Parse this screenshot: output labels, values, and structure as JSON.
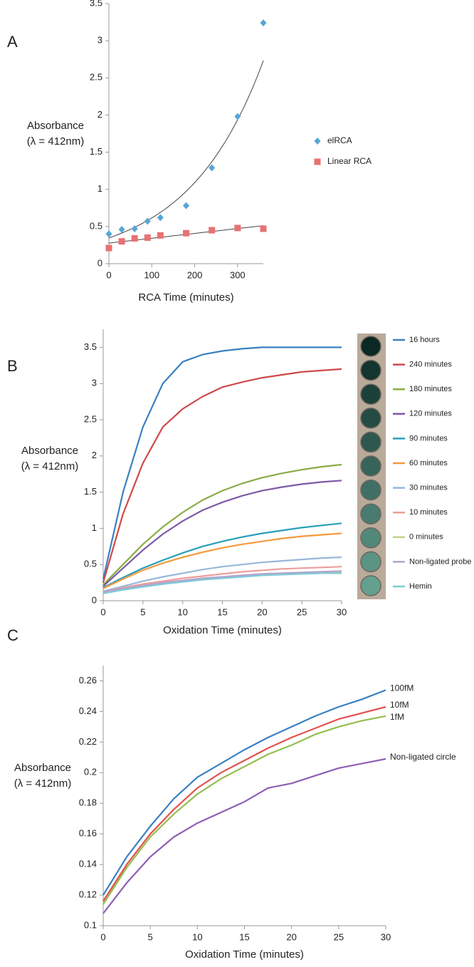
{
  "chart_data": [
    {
      "type": "scatter",
      "panel_label": "A",
      "xlabel": "RCA Time (minutes)",
      "ylabel": [
        "Absorbance",
        "(λ = 412nm)"
      ],
      "x": [
        0,
        30,
        60,
        90,
        120,
        180,
        240,
        300,
        360
      ],
      "xlim": [
        0,
        360
      ],
      "xticks": [
        0,
        100,
        200,
        300
      ],
      "ylim": [
        0,
        3.5
      ],
      "yticks": [
        0,
        0.5,
        1,
        1.5,
        2,
        2.5,
        3,
        3.5
      ],
      "legend": "right",
      "series": [
        {
          "name": "elRCA",
          "color": "#56a6d6",
          "marker": "diamond",
          "trendline": "exponential",
          "values": [
            0.4,
            0.46,
            0.47,
            0.57,
            0.62,
            0.78,
            1.29,
            1.98,
            3.24
          ]
        },
        {
          "name": "Linear RCA",
          "color": "#e87272",
          "marker": "square",
          "trendline": "linear",
          "values": [
            0.21,
            0.3,
            0.34,
            0.35,
            0.38,
            0.41,
            0.45,
            0.48,
            0.47
          ]
        }
      ]
    },
    {
      "type": "line",
      "panel_label": "B",
      "xlabel": "Oxidation Time (minutes)",
      "ylabel": [
        "Absorbance",
        "(λ = 412nm)"
      ],
      "x": [
        0,
        2.5,
        5,
        7.5,
        10,
        12.5,
        15,
        17.5,
        20,
        22.5,
        25,
        27.5,
        30
      ],
      "xlim": [
        0,
        30
      ],
      "xticks": [
        0,
        5,
        10,
        15,
        20,
        25,
        30
      ],
      "ylim": [
        0,
        3.75
      ],
      "yticks": [
        0,
        0.5,
        1,
        1.5,
        2,
        2.5,
        3,
        3.5
      ],
      "legend": "right",
      "series": [
        {
          "name": "16 hours",
          "color": "#3a80c2",
          "values": [
            0.3,
            1.5,
            2.4,
            3.0,
            3.3,
            3.4,
            3.45,
            3.48,
            3.5,
            3.5,
            3.5,
            3.5,
            3.5
          ]
        },
        {
          "name": "240 minutes",
          "color": "#cd4a48",
          "values": [
            0.25,
            1.2,
            1.9,
            2.4,
            2.65,
            2.82,
            2.95,
            3.02,
            3.08,
            3.12,
            3.16,
            3.18,
            3.2
          ]
        },
        {
          "name": "180 minutes",
          "color": "#8aac46",
          "values": [
            0.22,
            0.5,
            0.78,
            1.02,
            1.22,
            1.39,
            1.52,
            1.62,
            1.7,
            1.76,
            1.81,
            1.85,
            1.88
          ]
        },
        {
          "name": "120 minutes",
          "color": "#7d5aa6",
          "values": [
            0.2,
            0.45,
            0.7,
            0.92,
            1.1,
            1.25,
            1.36,
            1.45,
            1.52,
            1.57,
            1.61,
            1.64,
            1.66
          ]
        },
        {
          "name": "90 minutes",
          "color": "#27a0b8",
          "values": [
            0.18,
            0.32,
            0.45,
            0.56,
            0.66,
            0.75,
            0.82,
            0.88,
            0.93,
            0.97,
            1.01,
            1.04,
            1.07
          ]
        },
        {
          "name": "60 minutes",
          "color": "#f59a3c",
          "values": [
            0.17,
            0.3,
            0.42,
            0.52,
            0.6,
            0.67,
            0.73,
            0.78,
            0.82,
            0.86,
            0.89,
            0.91,
            0.93
          ]
        },
        {
          "name": "30 minutes",
          "color": "#98b7da",
          "values": [
            0.13,
            0.2,
            0.27,
            0.33,
            0.38,
            0.43,
            0.47,
            0.5,
            0.53,
            0.55,
            0.57,
            0.59,
            0.6
          ]
        },
        {
          "name": "10 minutes",
          "color": "#eb9e9c",
          "values": [
            0.12,
            0.18,
            0.23,
            0.27,
            0.31,
            0.34,
            0.37,
            0.4,
            0.42,
            0.44,
            0.45,
            0.46,
            0.47
          ]
        },
        {
          "name": "0 minutes",
          "color": "#bdd48f",
          "values": [
            0.11,
            0.16,
            0.2,
            0.24,
            0.27,
            0.3,
            0.32,
            0.34,
            0.36,
            0.37,
            0.38,
            0.39,
            0.39
          ]
        },
        {
          "name": "Non-ligated probe",
          "color": "#b4a3c8",
          "values": [
            0.12,
            0.17,
            0.21,
            0.25,
            0.28,
            0.31,
            0.33,
            0.35,
            0.37,
            0.38,
            0.39,
            0.4,
            0.41
          ]
        },
        {
          "name": "Hemin",
          "color": "#7fcbd9",
          "values": [
            0.1,
            0.15,
            0.19,
            0.23,
            0.26,
            0.29,
            0.31,
            0.33,
            0.35,
            0.36,
            0.37,
            0.38,
            0.38
          ]
        }
      ]
    },
    {
      "type": "line",
      "panel_label": "C",
      "xlabel": "Oxidation Time (minutes)",
      "ylabel": [
        "Absorbance",
        "(λ = 412nm)"
      ],
      "x": [
        0,
        2.5,
        5,
        7.5,
        10,
        12.5,
        15,
        17.5,
        20,
        22.5,
        25,
        27.5,
        30
      ],
      "xlim": [
        0,
        30
      ],
      "xticks": [
        0,
        5,
        10,
        15,
        20,
        25,
        30
      ],
      "ylim": [
        0.1,
        0.27
      ],
      "yticks": [
        0.1,
        0.12,
        0.14,
        0.16,
        0.18,
        0.2,
        0.22,
        0.24,
        0.26
      ],
      "legend": "line-end",
      "series": [
        {
          "name": "100fM",
          "color": "#3a80c2",
          "values": [
            0.12,
            0.145,
            0.165,
            0.183,
            0.197,
            0.206,
            0.215,
            0.223,
            0.23,
            0.237,
            0.243,
            0.248,
            0.254
          ]
        },
        {
          "name": "10fM",
          "color": "#e2524f",
          "values": [
            0.116,
            0.14,
            0.16,
            0.176,
            0.19,
            0.2,
            0.208,
            0.216,
            0.223,
            0.229,
            0.235,
            0.239,
            0.243
          ]
        },
        {
          "name": "1fM",
          "color": "#94be4f",
          "values": [
            0.114,
            0.138,
            0.158,
            0.173,
            0.186,
            0.196,
            0.204,
            0.212,
            0.218,
            0.225,
            0.23,
            0.234,
            0.237
          ]
        },
        {
          "name": "Non-ligated circle",
          "color": "#8e5fb3",
          "values": [
            0.108,
            0.128,
            0.145,
            0.158,
            0.167,
            0.174,
            0.181,
            0.19,
            0.193,
            0.198,
            0.203,
            0.206,
            0.209
          ]
        }
      ]
    }
  ]
}
